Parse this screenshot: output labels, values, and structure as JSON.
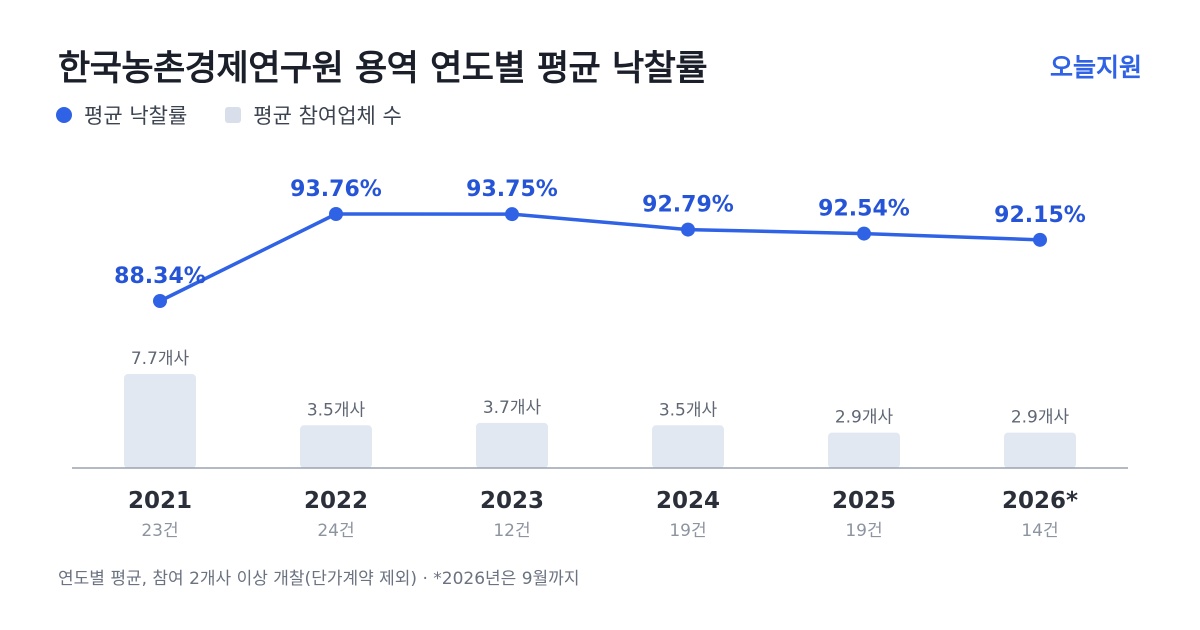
{
  "header": {
    "title": "한국농촌경제연구원 용역 연도별 평균 낙찰률",
    "brand": "오늘지원"
  },
  "legend": {
    "rate_label": "평균 낙찰률",
    "bidders_label": "평균 참여업체 수"
  },
  "footnote": "연도별 평균, 참여 2개사 이상 개찰(단가계약 제외) · *2026년은 9월까지",
  "colors": {
    "line": "#2f62e4",
    "bar": "#e2e8f1",
    "axis": "#9aa3b0"
  },
  "chart_data": {
    "type": "bar+line",
    "categories": [
      "2021",
      "2022",
      "2023",
      "2024",
      "2025",
      "2026*"
    ],
    "counts": [
      "23건",
      "24건",
      "12건",
      "19건",
      "19건",
      "14건"
    ],
    "series": [
      {
        "name": "평균 낙찰률",
        "kind": "line",
        "values": [
          88.34,
          93.76,
          93.75,
          92.79,
          92.54,
          92.15
        ],
        "labels": [
          "88.34%",
          "93.76%",
          "93.75%",
          "92.79%",
          "92.54%",
          "92.15%"
        ]
      },
      {
        "name": "평균 참여업체 수",
        "kind": "bar",
        "values": [
          7.7,
          3.5,
          3.7,
          3.5,
          2.9,
          2.9
        ],
        "labels": [
          "7.7개사",
          "3.5개사",
          "3.7개사",
          "3.5개사",
          "2.9개사",
          "2.9개사"
        ]
      }
    ],
    "grid": false,
    "legend_position": "top-left"
  }
}
